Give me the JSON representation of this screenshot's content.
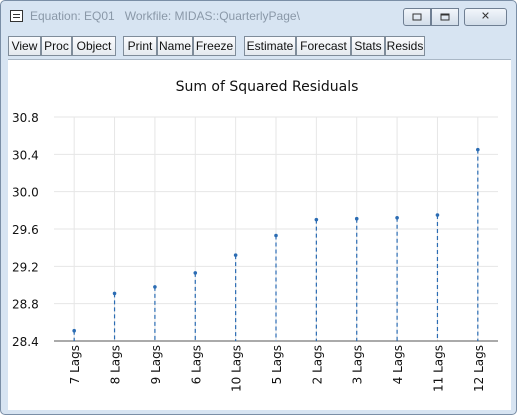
{
  "window": {
    "title_left": "Equation: EQ01",
    "title_right": "Workfile: MIDAS::QuarterlyPage\\"
  },
  "toolbar": {
    "buttons": [
      "View",
      "Proc",
      "Object",
      "Print",
      "Name",
      "Freeze",
      "Estimate",
      "Forecast",
      "Stats",
      "Resids"
    ]
  },
  "chart_data": {
    "type": "scatter",
    "style": "dropline",
    "title": "Sum of Squared Residuals",
    "categories": [
      "7 Lags",
      "8 Lags",
      "9 Lags",
      "6 Lags",
      "10 Lags",
      "5 Lags",
      "2 Lags",
      "3 Lags",
      "4 Lags",
      "11 Lags",
      "12 Lags"
    ],
    "values": [
      28.51,
      28.91,
      28.98,
      29.13,
      29.32,
      29.53,
      29.7,
      29.71,
      29.72,
      29.75,
      30.45
    ],
    "ylim": [
      28.4,
      30.8
    ],
    "yticks": [
      "28.4",
      "28.8",
      "29.2",
      "29.6",
      "30.0",
      "30.4",
      "30.8"
    ],
    "grid": true,
    "color": "#2b6cb3"
  }
}
